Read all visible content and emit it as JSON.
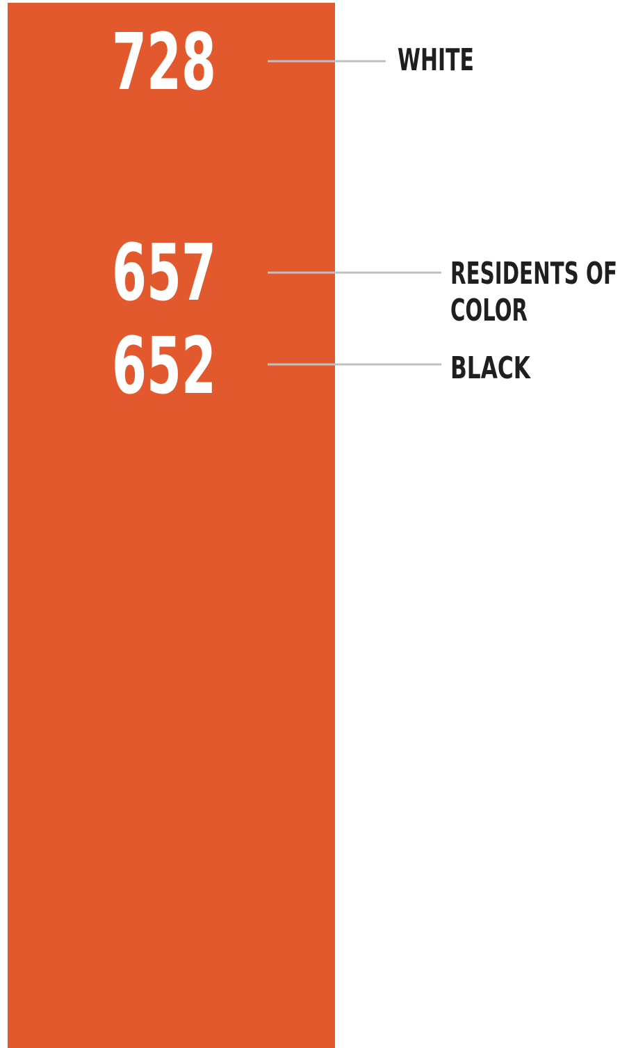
{
  "chart_data": {
    "type": "bar",
    "orientation": "vertical-strip",
    "series": [
      {
        "name": "White",
        "label": "WHITE",
        "value": 728
      },
      {
        "name": "Residents of color",
        "label": [
          "RESIDENTS OF",
          "COLOR"
        ],
        "value": 657
      },
      {
        "name": "Black",
        "label": "BLACK",
        "value": 652
      }
    ],
    "colors": {
      "bar": "#e2592e",
      "value_text": "#ffffff",
      "label_text": "#1f1f1f",
      "leader_line": "#c0c0c0"
    }
  }
}
